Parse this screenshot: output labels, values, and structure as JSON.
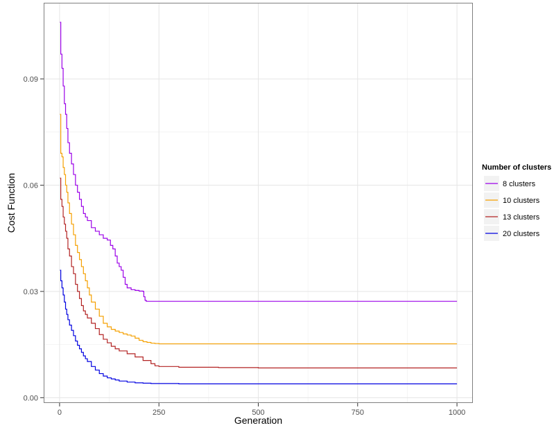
{
  "chart_data": {
    "type": "line",
    "title": "",
    "xlabel": "Generation",
    "ylabel": "Cost Function",
    "xlim": [
      -40,
      1040
    ],
    "ylim": [
      -0.0015,
      0.1115
    ],
    "x_ticks": [
      0,
      250,
      500,
      750,
      1000
    ],
    "x_tick_labels": [
      "0",
      "250",
      "500",
      "750",
      "1000"
    ],
    "y_ticks": [
      0,
      0.03,
      0.06,
      0.09
    ],
    "y_tick_labels": [
      "0.00",
      "0.03",
      "0.06",
      "0.09"
    ],
    "grid": true,
    "legend": {
      "title": "Number of clusters",
      "position": "right"
    },
    "series": [
      {
        "name": "8 clusters",
        "color": "#9b00e8",
        "x": [
          1,
          3,
          6,
          9,
          12,
          15,
          18,
          21,
          25,
          30,
          35,
          40,
          45,
          50,
          55,
          60,
          65,
          70,
          80,
          90,
          100,
          110,
          120,
          128,
          134,
          140,
          145,
          150,
          155,
          160,
          165,
          170,
          180,
          190,
          200,
          210,
          212,
          215,
          218,
          225,
          250,
          300,
          400,
          500,
          600,
          700,
          800,
          900,
          1000
        ],
        "values": [
          0.106,
          0.097,
          0.093,
          0.088,
          0.083,
          0.08,
          0.076,
          0.072,
          0.069,
          0.066,
          0.063,
          0.06,
          0.058,
          0.056,
          0.054,
          0.052,
          0.051,
          0.05,
          0.048,
          0.047,
          0.046,
          0.045,
          0.0445,
          0.043,
          0.042,
          0.04,
          0.038,
          0.037,
          0.036,
          0.034,
          0.032,
          0.031,
          0.0305,
          0.0303,
          0.0301,
          0.03,
          0.0285,
          0.0275,
          0.0272,
          0.0272,
          0.0272,
          0.0272,
          0.0272,
          0.0272,
          0.0272,
          0.0272,
          0.0272,
          0.0272,
          0.0272
        ]
      },
      {
        "name": "10 clusters",
        "color": "#f5a000",
        "x": [
          1,
          3,
          6,
          9,
          12,
          15,
          18,
          21,
          25,
          30,
          35,
          40,
          45,
          50,
          55,
          60,
          65,
          70,
          75,
          80,
          90,
          100,
          110,
          120,
          130,
          140,
          150,
          160,
          170,
          180,
          190,
          200,
          210,
          220,
          230,
          240,
          250,
          300,
          400,
          500,
          600,
          700,
          800,
          900,
          1000
        ],
        "values": [
          0.08,
          0.069,
          0.068,
          0.065,
          0.063,
          0.06,
          0.058,
          0.055,
          0.052,
          0.049,
          0.046,
          0.043,
          0.041,
          0.039,
          0.037,
          0.035,
          0.033,
          0.031,
          0.029,
          0.027,
          0.025,
          0.023,
          0.021,
          0.02,
          0.0193,
          0.0188,
          0.0184,
          0.018,
          0.0177,
          0.0174,
          0.0168,
          0.0162,
          0.0158,
          0.0156,
          0.0154,
          0.0153,
          0.0152,
          0.0152,
          0.0152,
          0.0152,
          0.0152,
          0.0152,
          0.0152,
          0.0152,
          0.0152
        ]
      },
      {
        "name": "13 clusters",
        "color": "#b22222",
        "x": [
          1,
          3,
          6,
          9,
          12,
          15,
          18,
          21,
          25,
          30,
          35,
          40,
          45,
          50,
          55,
          60,
          65,
          70,
          80,
          90,
          100,
          110,
          120,
          130,
          140,
          150,
          170,
          190,
          210,
          230,
          240,
          250,
          300,
          400,
          500,
          600,
          700,
          800,
          900,
          1000
        ],
        "values": [
          0.062,
          0.056,
          0.054,
          0.051,
          0.049,
          0.047,
          0.045,
          0.042,
          0.04,
          0.037,
          0.035,
          0.032,
          0.03,
          0.028,
          0.026,
          0.0245,
          0.0235,
          0.0225,
          0.021,
          0.0195,
          0.0178,
          0.0165,
          0.0155,
          0.0145,
          0.0138,
          0.0132,
          0.0124,
          0.0115,
          0.0105,
          0.0096,
          0.009,
          0.0088,
          0.0086,
          0.0085,
          0.0084,
          0.0084,
          0.0084,
          0.0084,
          0.0084,
          0.0084
        ]
      },
      {
        "name": "20 clusters",
        "color": "#0000e0",
        "x": [
          1,
          3,
          6,
          9,
          12,
          15,
          18,
          21,
          25,
          30,
          35,
          40,
          45,
          50,
          55,
          60,
          65,
          70,
          80,
          90,
          100,
          110,
          120,
          130,
          140,
          150,
          170,
          190,
          210,
          230,
          250,
          300,
          400,
          500,
          600,
          700,
          800,
          900,
          1000
        ],
        "values": [
          0.036,
          0.033,
          0.031,
          0.029,
          0.027,
          0.025,
          0.0235,
          0.022,
          0.0205,
          0.019,
          0.0175,
          0.016,
          0.0148,
          0.0138,
          0.0128,
          0.0118,
          0.011,
          0.0102,
          0.0088,
          0.0078,
          0.0068,
          0.0061,
          0.0056,
          0.0053,
          0.005,
          0.0047,
          0.0044,
          0.0042,
          0.0041,
          0.004,
          0.004,
          0.0039,
          0.0039,
          0.0039,
          0.0039,
          0.0039,
          0.0039,
          0.0039,
          0.0039
        ]
      }
    ]
  }
}
